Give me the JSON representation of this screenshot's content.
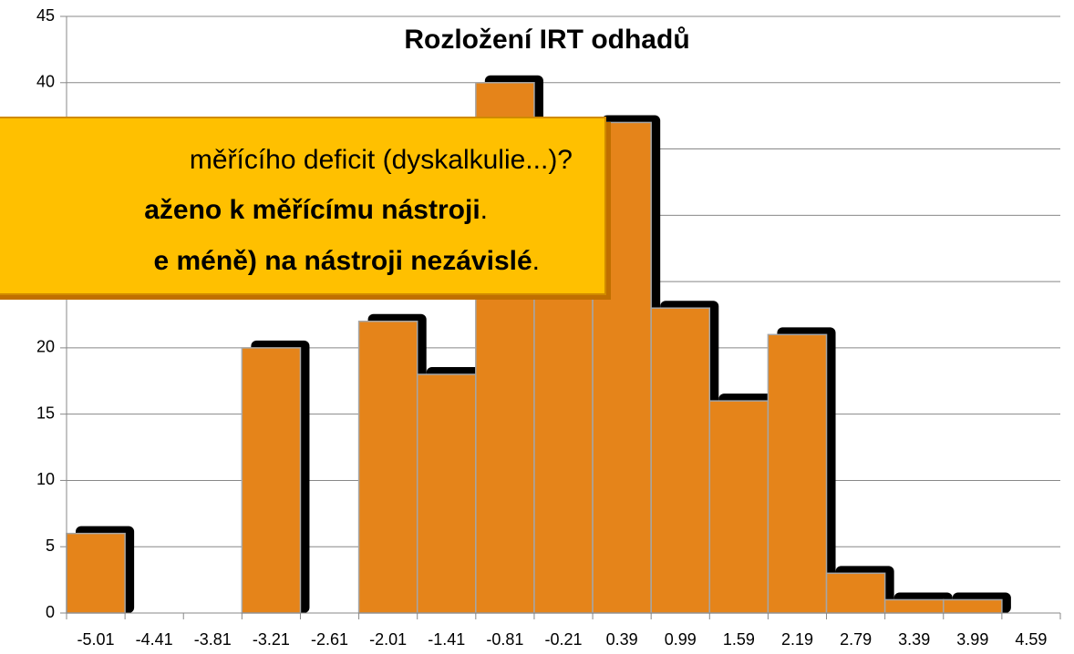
{
  "chart_data": {
    "type": "bar",
    "title": "Rozložení IRT odhadů",
    "categories": [
      "-5.01",
      "-4.41",
      "-3.81",
      "-3.21",
      "-2.61",
      "-2.01",
      "-1.41",
      "-0.81",
      "-0.21",
      "0.39",
      "0.99",
      "1.59",
      "2.19",
      "2.79",
      "3.39",
      "3.99",
      "4.59"
    ],
    "values": [
      6,
      0,
      0,
      20,
      0,
      22,
      18,
      40,
      35,
      37,
      23,
      16,
      21,
      3,
      1,
      1,
      0
    ],
    "color": "#e5841a",
    "ylim": [
      0,
      45
    ],
    "yticks": [
      0,
      5,
      10,
      15,
      20,
      25,
      30,
      35,
      40,
      45
    ],
    "grid": true,
    "annotation": {
      "lines": [
        [
          {
            "text": "měřícího deficit (dyskalkulie...)?",
            "bold": false
          }
        ],
        [
          {
            "text": "aženo k měřícímu nástroji",
            "bold": true
          },
          {
            "text": ".",
            "bold": false
          }
        ],
        [
          {
            "text": "e méně) na nástroji nezávislé",
            "bold": true
          },
          {
            "text": ".",
            "bold": false
          }
        ]
      ]
    }
  }
}
